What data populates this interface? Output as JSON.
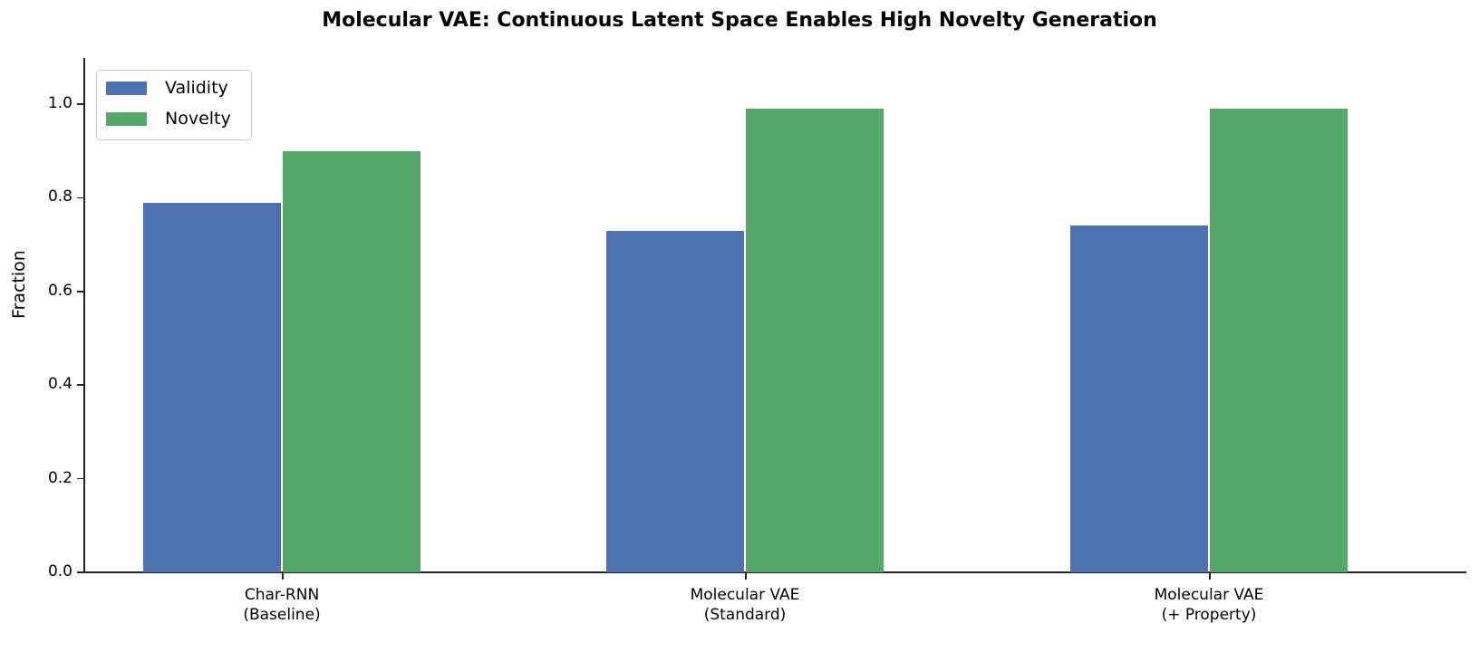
{
  "chart_data": {
    "type": "bar",
    "title": "Molecular VAE: Continuous Latent Space Enables High Novelty Generation",
    "xlabel": "",
    "ylabel": "Fraction",
    "categories": [
      "Char-RNN\n(Baseline)",
      "Molecular VAE\n(Standard)",
      "Molecular VAE\n(+ Property)"
    ],
    "category_lines": [
      [
        "Char-RNN",
        "(Baseline)"
      ],
      [
        "Molecular VAE",
        "(Standard)"
      ],
      [
        "Molecular VAE",
        "(+ Property)"
      ]
    ],
    "series": [
      {
        "name": "Validity",
        "color": "#4c72b0",
        "values": [
          0.79,
          0.73,
          0.74
        ]
      },
      {
        "name": "Novelty",
        "color": "#55a868",
        "values": [
          0.9,
          0.99,
          0.99
        ]
      }
    ],
    "ylim": [
      0,
      1.1
    ],
    "yticks": [
      "0.0",
      "0.2",
      "0.4",
      "0.6",
      "0.8",
      "1.0"
    ],
    "grid": false,
    "legend_position": "upper left"
  }
}
